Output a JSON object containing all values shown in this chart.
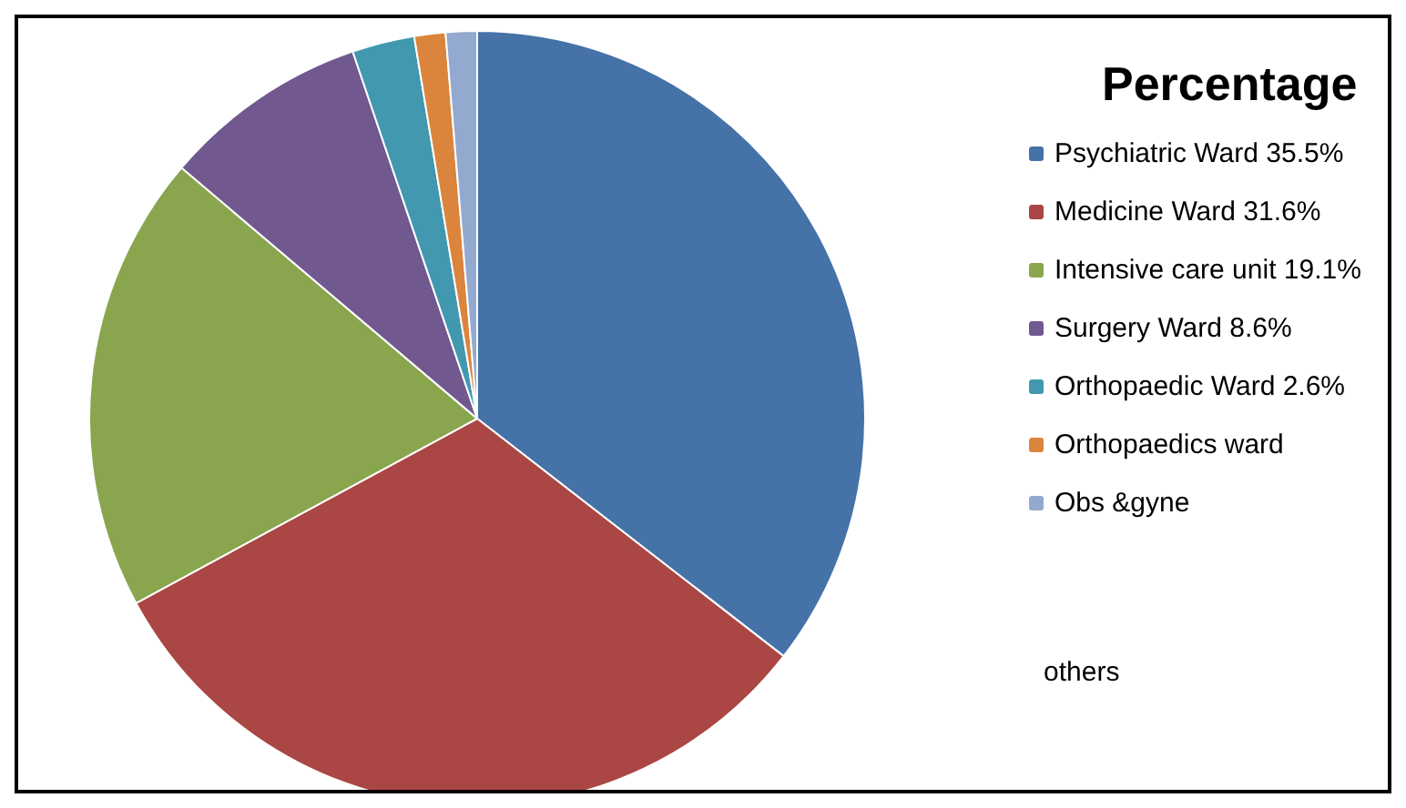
{
  "chart_data": {
    "type": "pie",
    "title": "Percentage",
    "categories": [
      "Psychiatric Ward 35.5%",
      "Medicine Ward 31.6%",
      "Intensive care unit 19.1%",
      "Surgery Ward 8.6%",
      "Orthopaedic Ward 2.6%",
      "Orthopaedics ward",
      "Obs &gyne"
    ],
    "values": [
      35.5,
      31.6,
      19.1,
      8.6,
      2.6,
      1.3,
      1.3
    ],
    "colors": [
      "#4572a7",
      "#aa4643",
      "#89a54e",
      "#71588f",
      "#4198af",
      "#db843d",
      "#93a9cf"
    ],
    "legend": "right",
    "annotations": [
      "others"
    ]
  }
}
